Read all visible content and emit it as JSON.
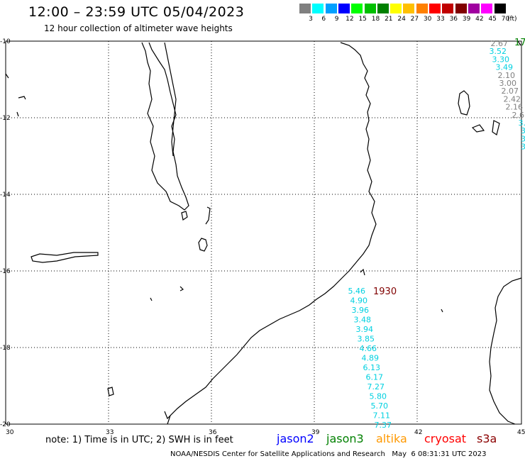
{
  "header": {
    "title": "12:00 – 23:59 UTC 05/04/2023",
    "subtitle": "12 hour collection of altimeter wave heights"
  },
  "legend": {
    "unit": "(ft)",
    "entries": [
      {
        "label": "3",
        "color": "#808080"
      },
      {
        "label": "6",
        "color": "#00ffff"
      },
      {
        "label": "9",
        "color": "#00a0ff"
      },
      {
        "label": "12",
        "color": "#0000ff"
      },
      {
        "label": "15",
        "color": "#00ff00"
      },
      {
        "label": "18",
        "color": "#00c000"
      },
      {
        "label": "21",
        "color": "#008000"
      },
      {
        "label": "24",
        "color": "#ffff00"
      },
      {
        "label": "27",
        "color": "#ffc000"
      },
      {
        "label": "30",
        "color": "#ff8000"
      },
      {
        "label": "33",
        "color": "#ff0000"
      },
      {
        "label": "36",
        "color": "#c00000"
      },
      {
        "label": "39",
        "color": "#800000"
      },
      {
        "label": "42",
        "color": "#a000a0"
      },
      {
        "label": "45",
        "color": "#ff00ff"
      },
      {
        "label": "70",
        "color": "#000000"
      }
    ]
  },
  "axes": {
    "lon_labels": [
      "30",
      "33",
      "36",
      "39",
      "42",
      "45"
    ],
    "lat_labels": [
      "-10",
      "-12",
      "-14",
      "-16",
      "-18",
      "-20"
    ]
  },
  "track_east": {
    "color_gray": "#808080",
    "color_cyan": "#00d0e0",
    "values": [
      {
        "v": "2.67",
        "c": "gray"
      },
      {
        "v": "3.52",
        "c": "cyan"
      },
      {
        "v": "3.30",
        "c": "cyan"
      },
      {
        "v": "3.49",
        "c": "cyan"
      },
      {
        "v": "2.10",
        "c": "gray"
      },
      {
        "v": "3.00",
        "c": "gray"
      },
      {
        "v": "2.07",
        "c": "gray"
      },
      {
        "v": "2.42",
        "c": "gray"
      },
      {
        "v": "2.16",
        "c": "gray"
      },
      {
        "v": "2.6",
        "c": "gray"
      },
      {
        "v": "3.",
        "c": "cyan"
      },
      {
        "v": "3",
        "c": "cyan"
      },
      {
        "v": "3",
        "c": "cyan"
      },
      {
        "v": "3",
        "c": "cyan"
      }
    ],
    "time_label": "17",
    "time_color": "#008000"
  },
  "track_mid": {
    "color": "#00d0e0",
    "values": [
      "5.46",
      "4.90",
      "3.96",
      "3.48",
      "3.94",
      "3.85",
      "4.66",
      "4.89",
      "6.13",
      "6.17",
      "7.27",
      "5.80",
      "5.70",
      "7.11",
      "7.37"
    ],
    "time_label": "1930",
    "time_color": "#800000"
  },
  "note": "note: 1) Time is in UTC; 2) SWH is in feet",
  "satellites": [
    {
      "name": "jason2",
      "color": "#0000ff"
    },
    {
      "name": "jason3",
      "color": "#008000"
    },
    {
      "name": "altika",
      "color": "#ff9900"
    },
    {
      "name": "cryosat",
      "color": "#ff0000"
    },
    {
      "name": "s3a",
      "color": "#8b0000"
    }
  ],
  "footer": "NOAA/NESDIS Center for Satellite Applications and Research   May  6 08:31:31 UTC 2023"
}
